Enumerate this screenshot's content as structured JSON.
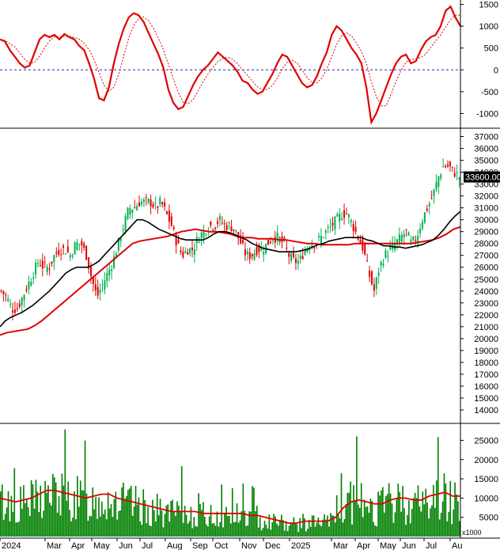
{
  "chart_data": [
    {
      "type": "line",
      "panel": "oscillator",
      "ylim": [
        -1300,
        1600
      ],
      "y_ticks": [
        "1500",
        "1000",
        "500",
        "0",
        "-500",
        "-1000"
      ],
      "zero_line": "dashed blue",
      "colors": {
        "main": "#e00000",
        "signal": "#e00000"
      },
      "series": [
        {
          "values": [
            700,
            650,
            450,
            300,
            150,
            50,
            100,
            400,
            700,
            800,
            750,
            800,
            700,
            820,
            750,
            700,
            550,
            450,
            150,
            -200,
            -650,
            -700,
            -400,
            150,
            600,
            950,
            1200,
            1300,
            1250,
            1100,
            850,
            600,
            350,
            50,
            -450,
            -750,
            -900,
            -850,
            -600,
            -350,
            -150,
            0,
            100,
            250,
            400,
            300,
            200,
            100,
            -50,
            -250,
            -300,
            -450,
            -550,
            -500,
            -300,
            -100,
            150,
            350,
            300,
            100,
            -100,
            -300,
            -400,
            -350,
            -150,
            150,
            400,
            800,
            1000,
            900,
            700,
            500,
            350,
            150,
            -400,
            -1200,
            -1000,
            -700,
            -400,
            -100,
            150,
            300,
            350,
            150,
            200,
            450,
            650,
            750,
            800,
            1000,
            1350,
            1450,
            1200,
            1000
          ]
        }
      ]
    },
    {
      "type": "candlestick",
      "panel": "price",
      "ylim": [
        13000,
        37500
      ],
      "y_ticks": [
        "37000",
        "36000",
        "35000",
        "34000",
        "33000",
        "32000",
        "31000",
        "30000",
        "29000",
        "28000",
        "27000",
        "26000",
        "25000",
        "24000",
        "23000",
        "22000",
        "21000",
        "20000",
        "19000",
        "18000",
        "17000",
        "16000",
        "15000",
        "14000"
      ],
      "last_price_label": "33600.00",
      "colors": {
        "up": "#00b050",
        "down": "#e00000",
        "ma_short": "#000000",
        "ma_long": "#e00000"
      },
      "series": [
        {
          "name": "close",
          "values": [
            24000,
            23500,
            22500,
            22500,
            23500,
            24500,
            25500,
            26500,
            26000,
            26000,
            27000,
            27500,
            27500,
            27000,
            28000,
            28000,
            27000,
            25000,
            23500,
            24500,
            25500,
            26500,
            28000,
            29500,
            31000,
            31000,
            31500,
            31500,
            31500,
            31000,
            31500,
            30500,
            29500,
            28000,
            27000,
            27500,
            27500,
            28500,
            29000,
            29500,
            29500,
            30000,
            29500,
            29500,
            29000,
            28000,
            27000,
            27000,
            27500,
            27500,
            28000,
            28500,
            28500,
            28000,
            27000,
            26500,
            26500,
            27500,
            28000,
            28000,
            28500,
            29000,
            29500,
            30000,
            30500,
            30500,
            29500,
            28500,
            27500,
            25500,
            24000,
            26000,
            27000,
            27500,
            28000,
            28500,
            29000,
            28000,
            28500,
            30000,
            31000,
            32000,
            33500,
            34500,
            34500,
            34000,
            33600
          ]
        },
        {
          "name": "ma_short",
          "values": [
            21000,
            21500,
            21800,
            22000,
            22200,
            22500,
            22800,
            23200,
            23600,
            24000,
            24500,
            25000,
            25500,
            25800,
            26000,
            26000,
            26000,
            26200,
            26500,
            27000,
            27500,
            28000,
            28500,
            29000,
            29500,
            30000,
            30000,
            29800,
            29500,
            29200,
            29000,
            28800,
            28600,
            28400,
            28300,
            28300,
            28300,
            28300,
            28500,
            28800,
            29000,
            29000,
            28900,
            28700,
            28500,
            28300,
            28000,
            27800,
            27600,
            27500,
            27400,
            27300,
            27300,
            27300,
            27300,
            27400,
            27500,
            27700,
            27900,
            28000,
            28200,
            28300,
            28400,
            28500,
            28500,
            28500,
            28500,
            28300,
            28200,
            28000,
            27800,
            27800,
            27700,
            27700,
            27600,
            27700,
            27800,
            27900,
            28100,
            28300,
            28700,
            29200,
            29800,
            30300,
            30700
          ]
        },
        {
          "name": "ma_long",
          "values": [
            20300,
            20500,
            20600,
            20700,
            20800,
            21100,
            21500,
            22000,
            22500,
            23000,
            23500,
            24000,
            24500,
            25000,
            25500,
            26000,
            26500,
            27000,
            27500,
            28000,
            28200,
            28300,
            28400,
            28500,
            28600,
            28800,
            29000,
            29100,
            29200,
            29100,
            29000,
            29000,
            28900,
            28800,
            28600,
            28500,
            28500,
            28400,
            28400,
            28400,
            28300,
            28300,
            28200,
            28100,
            28000,
            28000,
            27900,
            27900,
            27900,
            27900,
            27900,
            28000,
            28000,
            28000,
            28000,
            28000,
            28000,
            28000,
            28000,
            28000,
            28100,
            28200,
            28300,
            28500,
            28800,
            29200,
            29400
          ]
        }
      ]
    },
    {
      "type": "bar",
      "panel": "volume",
      "ylim": [
        0,
        29000
      ],
      "y_ticks": [
        "25000",
        "20000",
        "15000",
        "10000",
        "5000"
      ],
      "unit_label": "x1000",
      "colors": {
        "bars": "#008000",
        "ma": "#e00000"
      },
      "series": [
        {
          "name": "ma",
          "values": [
            10000,
            9500,
            9000,
            9500,
            10000,
            11000,
            12000,
            12000,
            11500,
            11000,
            10500,
            10000,
            10500,
            11000,
            11000,
            10000,
            9500,
            9000,
            8500,
            8000,
            7500,
            7000,
            6500,
            6500,
            6500,
            6500,
            6000,
            6000,
            6000,
            6000,
            6000,
            6000,
            5500,
            5500,
            5000,
            4500,
            4000,
            3500,
            3500,
            4000,
            4000,
            4000,
            4000,
            5000,
            7500,
            9000,
            9500,
            9000,
            8500,
            8500,
            9500,
            10000,
            10000,
            9500,
            9500,
            10500,
            11000,
            11500,
            10500,
            10500
          ]
        }
      ]
    }
  ],
  "x_axis": {
    "labels": [
      "2024",
      "Mar",
      "Apr",
      "May",
      "Jun",
      "Jul",
      "Aug",
      "Sep",
      "Oct",
      "Nov",
      "Dec",
      "2025",
      "Mar",
      "Apr",
      "May",
      "Jun",
      "Jul",
      "Au"
    ]
  }
}
